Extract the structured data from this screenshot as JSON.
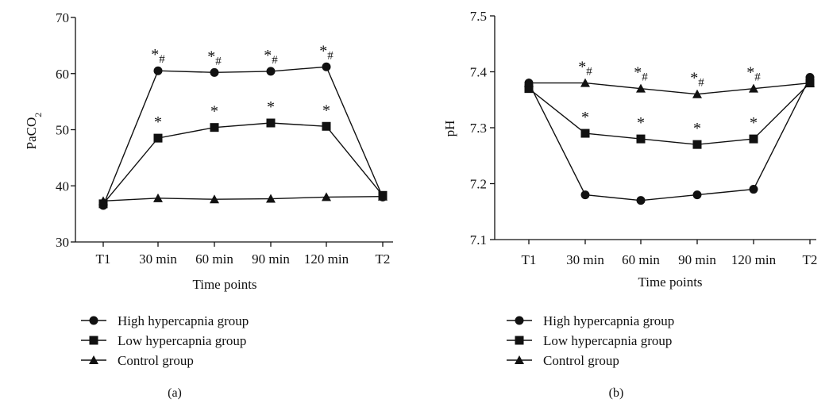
{
  "panels": [
    {
      "panel_label": "(a)",
      "y_label_main": "PaCO",
      "y_label_sub": "2"
    },
    {
      "panel_label": "(b)",
      "y_label_main": "pH",
      "y_label_sub": ""
    }
  ],
  "chart_data": [
    {
      "type": "line",
      "categories": [
        "T1",
        "30 min",
        "60 min",
        "90 min",
        "120 min",
        "T2"
      ],
      "xlabel": "Time points",
      "ylabel": "PaCO2",
      "ylim": [
        30,
        70
      ],
      "yticks": [
        30,
        40,
        50,
        60,
        70
      ],
      "ytick_labels": [
        "30",
        "40",
        "50",
        "60",
        "70"
      ],
      "grid": false,
      "legend_position": "below-left",
      "series": [
        {
          "name": "High hypercapnia group",
          "marker": "circle",
          "values": [
            36.5,
            60.5,
            60.2,
            60.4,
            61.2,
            38.0
          ],
          "annotations": [
            "",
            "*#",
            "*#",
            "*#",
            "*#",
            ""
          ]
        },
        {
          "name": "Low hypercapnia group",
          "marker": "square",
          "values": [
            36.8,
            48.5,
            50.4,
            51.2,
            50.6,
            38.3
          ],
          "annotations": [
            "",
            "*",
            "*",
            "*",
            "*",
            ""
          ]
        },
        {
          "name": "Control group",
          "marker": "triangle",
          "values": [
            37.3,
            37.8,
            37.6,
            37.7,
            38.0,
            38.1
          ],
          "annotations": [
            "",
            "",
            "",
            "",
            "",
            ""
          ]
        }
      ]
    },
    {
      "type": "line",
      "categories": [
        "T1",
        "30 min",
        "60 min",
        "90 min",
        "120 min",
        "T2"
      ],
      "xlabel": "Time points",
      "ylabel": "pH",
      "ylim": [
        7.1,
        7.5
      ],
      "yticks": [
        7.1,
        7.2,
        7.3,
        7.4,
        7.5
      ],
      "ytick_labels": [
        "7.1",
        "7.2",
        "7.3",
        "7.4",
        "7.5"
      ],
      "grid": false,
      "legend_position": "below-left",
      "series": [
        {
          "name": "High hypercapnia group",
          "marker": "circle",
          "values": [
            7.38,
            7.18,
            7.17,
            7.18,
            7.19,
            7.39
          ],
          "annotations": [
            "",
            "",
            "",
            "",
            "",
            ""
          ]
        },
        {
          "name": "Low hypercapnia group",
          "marker": "square",
          "values": [
            7.37,
            7.29,
            7.28,
            7.27,
            7.28,
            7.38
          ],
          "annotations": [
            "",
            "*",
            "*",
            "*",
            "*",
            ""
          ]
        },
        {
          "name": "Control group",
          "marker": "triangle",
          "values": [
            7.38,
            7.38,
            7.37,
            7.36,
            7.37,
            7.38
          ],
          "annotations": [
            "",
            "*#",
            "*#",
            "*#",
            "*#",
            ""
          ]
        }
      ]
    }
  ]
}
